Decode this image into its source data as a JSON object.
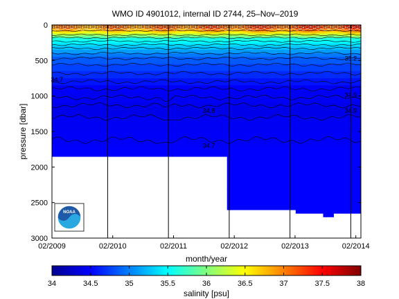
{
  "chart_data": {
    "type": "heatmap",
    "title": "WMO ID 4901012, internal ID 2744, 25–Nov–2019",
    "xlabel": "month/year",
    "ylabel": "pressure [dbar]",
    "x_ticks": [
      "02/2009",
      "02/2010",
      "02/2011",
      "02/2012",
      "02/2013",
      "02/2014"
    ],
    "x_range": [
      "2009-02",
      "2014-03"
    ],
    "y_ticks": [
      0,
      500,
      1000,
      1500,
      2000,
      2500,
      3000
    ],
    "y_range": [
      0,
      3000
    ],
    "y_reversed": true,
    "year_boundaries": [
      "2010-01",
      "2011-01",
      "2012-01",
      "2013-01",
      "2014-01"
    ],
    "profile_depth_segments": [
      {
        "start": "2009-02",
        "end": "2011-12",
        "max_pressure": 1850
      },
      {
        "start": "2011-12",
        "end": "2013-02",
        "max_pressure": 2600
      },
      {
        "start": "2013-02",
        "end": "2013-07",
        "max_pressure": 2650
      },
      {
        "start": "2013-07",
        "end": "2013-09",
        "max_pressure": 2700
      },
      {
        "start": "2013-09",
        "end": "2014-03",
        "max_pressure": 2650
      }
    ],
    "contour_labels": [
      {
        "text": "34.7",
        "date": "2009-03",
        "pressure": 770
      },
      {
        "text": "35.2",
        "date": "2014-01",
        "pressure": 470
      },
      {
        "text": "34.9",
        "date": "2014-01",
        "pressure": 1210
      },
      {
        "text": "34.9",
        "date": "2014-01",
        "pressure": 990
      },
      {
        "text": "34.8",
        "date": "2011-09",
        "pressure": 1210
      },
      {
        "text": "34.7",
        "date": "2011-09",
        "pressure": 1700
      }
    ],
    "colorbar": {
      "label": "salinity [psu]",
      "min": 34,
      "max": 38,
      "ticks": [
        34,
        34.5,
        35,
        35.5,
        36,
        36.5,
        37,
        37.5,
        38
      ],
      "tick_labels": [
        "34",
        "34.5",
        "35",
        "35.5",
        "36",
        "36.5",
        "37",
        "37.5",
        "38"
      ],
      "colormap": "jet"
    },
    "grid": false
  },
  "logo": {
    "text": "NOAA",
    "icon": "noaa-logo-icon",
    "colors": {
      "outer": "#1e5aa8",
      "inner": "#2aa8e0",
      "ring": "#ffffff"
    }
  }
}
